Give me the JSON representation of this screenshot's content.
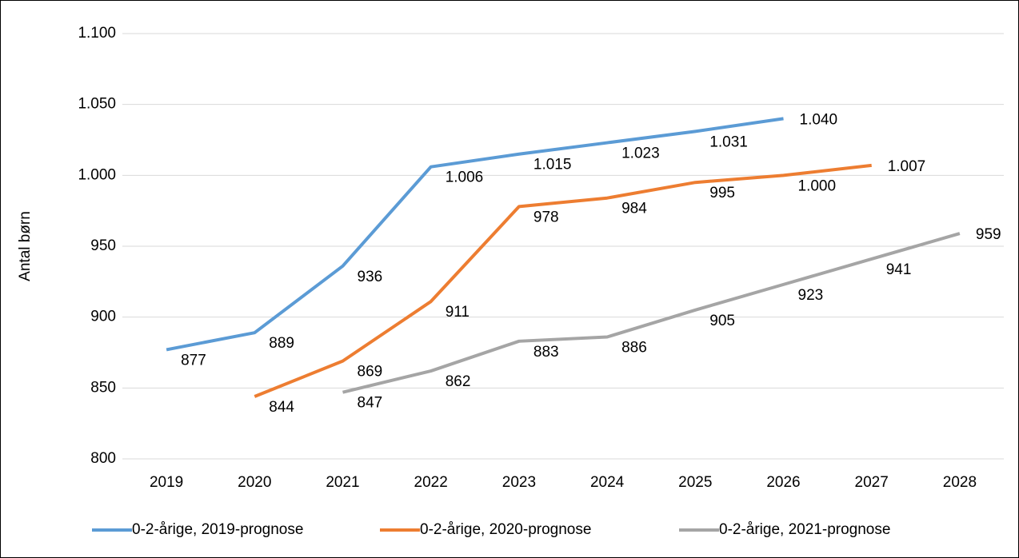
{
  "chart_data": {
    "type": "line",
    "y_label": "Antal børn",
    "categories": [
      "2019",
      "2020",
      "2021",
      "2022",
      "2023",
      "2024",
      "2025",
      "2026",
      "2027",
      "2028"
    ],
    "series": [
      {
        "name": "0-2-årige, 2019-prognose",
        "color": "#5b9bd5",
        "values": [
          877,
          889,
          936,
          1006,
          1015,
          1023,
          1031,
          1040,
          null,
          null
        ],
        "value_labels": [
          "877",
          "889",
          "936",
          "1.006",
          "1.015",
          "1.023",
          "1.031",
          "1.040",
          null,
          null
        ]
      },
      {
        "name": "0-2-årige, 2020-prognose",
        "color": "#ed7d31",
        "values": [
          null,
          844,
          869,
          911,
          978,
          984,
          995,
          1000,
          1007,
          null
        ],
        "value_labels": [
          null,
          "844",
          "869",
          "911",
          "978",
          "984",
          "995",
          "1.000",
          "1.007",
          null
        ]
      },
      {
        "name": "0-2-årige, 2021-prognose",
        "color": "#a5a5a5",
        "values": [
          null,
          null,
          847,
          862,
          883,
          886,
          905,
          923,
          941,
          959
        ],
        "value_labels": [
          null,
          null,
          "847",
          "862",
          "883",
          "886",
          "905",
          "923",
          "941",
          "959"
        ]
      }
    ],
    "ylim": [
      800,
      1100
    ],
    "yticks": [
      800,
      850,
      900,
      950,
      {
        "value": 1000,
        "label": "1.000"
      },
      {
        "value": 1050,
        "label": "1.050"
      },
      {
        "value": 1100,
        "label": "1.100"
      }
    ],
    "grid": true,
    "legend": "bottom"
  }
}
